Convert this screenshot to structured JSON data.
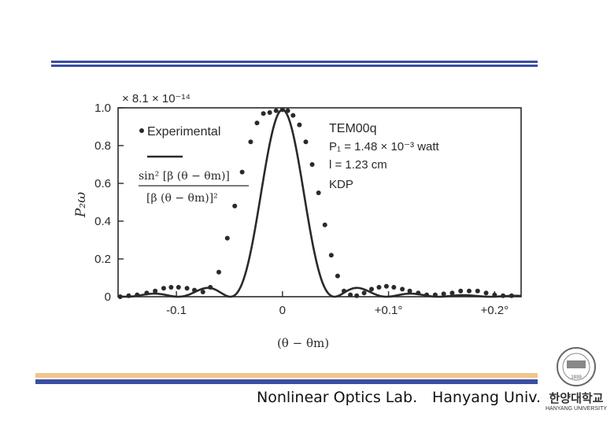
{
  "footer": {
    "lab": "Nonlinear Optics Lab.",
    "university": "Hanyang Univ."
  },
  "logo": {
    "text_korean": "한양대학교",
    "text_english": "HANYANG UNIVERSITY",
    "year": "1939"
  },
  "colors": {
    "rule_blue": "#3b4ea0",
    "rule_orange": "#f2c48a",
    "plot_ink": "#2a2a2a"
  },
  "chart_data": {
    "type": "scatter",
    "title": "",
    "multiplier_label": "× 8.1 × 10⁻¹⁴",
    "ylabel": "P₂ω",
    "xlabel": "(θ − θm)",
    "xlim": [
      -0.155,
      0.225
    ],
    "ylim": [
      0,
      1.0
    ],
    "x_ticks": [
      {
        "value": -0.1,
        "label": "-0.1"
      },
      {
        "value": 0,
        "label": "0"
      },
      {
        "value": 0.1,
        "label": "+0.1°"
      },
      {
        "value": 0.2,
        "label": "+0.2°"
      }
    ],
    "y_ticks": [
      {
        "value": 0,
        "label": "0"
      },
      {
        "value": 0.2,
        "label": "0.2"
      },
      {
        "value": 0.4,
        "label": "0.4"
      },
      {
        "value": 0.6,
        "label": "0.6"
      },
      {
        "value": 0.8,
        "label": "0.8"
      },
      {
        "value": 1.0,
        "label": "1.0"
      }
    ],
    "legend": {
      "placement": "top-left",
      "points_label": "Experimental",
      "curve_numerator": "sin² [β (θ − θm)]",
      "curve_denominator": "[β (θ − θm)]²"
    },
    "annotation": {
      "placement": "top-right",
      "lines": [
        "TEM00q",
        "P₁ = 1.48 × 10⁻³ watt",
        "l = 1.23 cm",
        "KDP"
      ]
    },
    "series": [
      {
        "kind": "points",
        "x": [
          -0.153,
          -0.145,
          -0.137,
          -0.128,
          -0.12,
          -0.112,
          -0.105,
          -0.098,
          -0.09,
          -0.083,
          -0.075,
          -0.068,
          -0.06,
          -0.052,
          -0.045,
          -0.038,
          -0.03,
          -0.024,
          -0.018,
          -0.012,
          -0.006,
          0.0,
          0.005,
          0.01,
          0.016,
          0.022,
          0.028,
          0.034,
          0.04,
          0.046,
          0.052,
          0.058,
          0.064,
          0.07,
          0.077,
          0.084,
          0.091,
          0.098,
          0.105,
          0.113,
          0.12,
          0.128,
          0.136,
          0.144,
          0.152,
          0.16,
          0.168,
          0.176,
          0.184,
          0.192,
          0.2,
          0.208,
          0.216
        ],
        "y": [
          0.0,
          0.005,
          0.01,
          0.02,
          0.03,
          0.045,
          0.05,
          0.05,
          0.045,
          0.035,
          0.025,
          0.05,
          0.13,
          0.31,
          0.48,
          0.66,
          0.82,
          0.92,
          0.97,
          0.975,
          0.985,
          0.99,
          0.985,
          0.96,
          0.91,
          0.82,
          0.7,
          0.55,
          0.38,
          0.22,
          0.11,
          0.03,
          0.01,
          0.005,
          0.02,
          0.04,
          0.05,
          0.055,
          0.05,
          0.04,
          0.03,
          0.02,
          0.01,
          0.01,
          0.015,
          0.02,
          0.03,
          0.03,
          0.03,
          0.02,
          0.01,
          0.005,
          0.005
        ]
      },
      {
        "kind": "curve",
        "function": "sinc_squared",
        "peak": 0.99,
        "beta": 64
      }
    ]
  }
}
